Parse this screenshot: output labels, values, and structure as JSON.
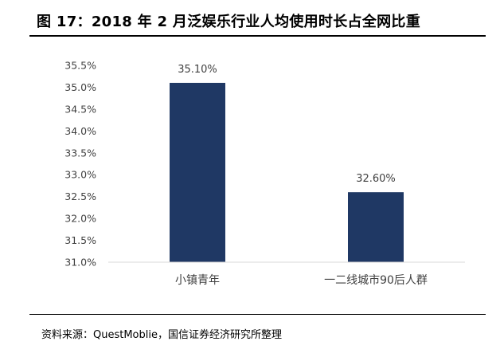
{
  "figure": {
    "title": "图 17：2018 年 2 月泛娱乐行业人均使用时长占全网比重",
    "source": "资料来源：QuestMoblie，国信证券经济研究所整理"
  },
  "chart_data": {
    "type": "bar",
    "title": "",
    "xlabel": "",
    "ylabel": "",
    "categories": [
      "小镇青年",
      "一二线城市90后人群"
    ],
    "values": [
      35.1,
      32.6
    ],
    "value_labels": [
      "35.10%",
      "32.60%"
    ],
    "ylim": [
      31.0,
      35.5
    ],
    "yticks": [
      31.0,
      31.5,
      32.0,
      32.5,
      33.0,
      33.5,
      34.0,
      34.5,
      35.0,
      35.5
    ],
    "ytick_labels": [
      "31.0%",
      "31.5%",
      "32.0%",
      "32.5%",
      "33.0%",
      "33.5%",
      "34.0%",
      "34.5%",
      "35.0%",
      "35.5%"
    ],
    "grid": false,
    "legend": "none",
    "bar_color": "#1f3864"
  }
}
